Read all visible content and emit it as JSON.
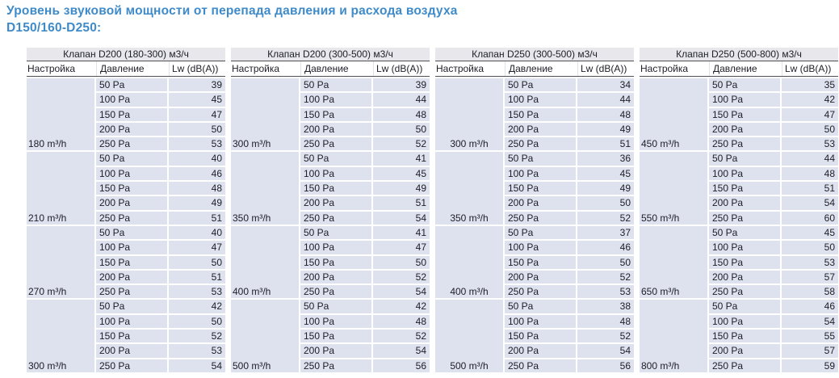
{
  "title": "Уровень звуковой мощности от перепада давления и расхода воздуха D150/160-D250:",
  "colors": {
    "title_blue": "#3f8bc9",
    "header_band_bg": "#e8e7ec",
    "row_bg": "#dee2ef",
    "dark_line": "#4f4f58",
    "table_text": "#20202a"
  },
  "columns": {
    "setting": "Настройка",
    "pressure": "Давление",
    "lw": "Lw (dB(A))"
  },
  "pressures": [
    "50 Pa",
    "100 Pa",
    "150 Pa",
    "200 Pa",
    "250 Pa"
  ],
  "tables": [
    {
      "header": "Клапан D200 (180-300) м3/ч",
      "groups": [
        {
          "setting": "180 m³/h",
          "lw": [
            39,
            45,
            47,
            50,
            53
          ]
        },
        {
          "setting": "210 m³/h",
          "lw": [
            40,
            46,
            48,
            49,
            51
          ]
        },
        {
          "setting": "270 m³/h",
          "lw": [
            40,
            47,
            50,
            51,
            53
          ]
        },
        {
          "setting": "300 m³/h",
          "lw": [
            42,
            50,
            52,
            53,
            54
          ]
        }
      ]
    },
    {
      "header": "Клапан D200 (300-500) м3/ч",
      "groups": [
        {
          "setting": "300 m³/h",
          "lw": [
            39,
            44,
            48,
            50,
            52
          ]
        },
        {
          "setting": "350 m³/h",
          "lw": [
            41,
            45,
            49,
            51,
            54
          ]
        },
        {
          "setting": "400 m³/h",
          "lw": [
            41,
            47,
            50,
            52,
            54
          ]
        },
        {
          "setting": "500 m³/h",
          "lw": [
            42,
            48,
            52,
            54,
            56
          ]
        }
      ]
    },
    {
      "header": "Клапан D250 (300-500) м3/ч",
      "groups": [
        {
          "setting": "300 m³/h",
          "lw": [
            34,
            44,
            48,
            49,
            51
          ]
        },
        {
          "setting": "350 m³/h",
          "lw": [
            36,
            45,
            49,
            50,
            52
          ]
        },
        {
          "setting": "400 m³/h",
          "lw": [
            37,
            46,
            50,
            52,
            53
          ]
        },
        {
          "setting": "500 m³/h",
          "lw": [
            38,
            48,
            52,
            54,
            56
          ]
        }
      ]
    },
    {
      "header": "Клапан D250 (500-800) м3/ч",
      "groups": [
        {
          "setting": "450 m³/h",
          "lw": [
            35,
            42,
            47,
            50,
            53
          ]
        },
        {
          "setting": "550 m³/h",
          "lw": [
            44,
            48,
            51,
            54,
            60
          ]
        },
        {
          "setting": "650 m³/h",
          "lw": [
            45,
            50,
            53,
            57,
            58
          ]
        },
        {
          "setting": "800 m³/h",
          "lw": [
            46,
            54,
            55,
            57,
            59
          ]
        }
      ]
    }
  ]
}
